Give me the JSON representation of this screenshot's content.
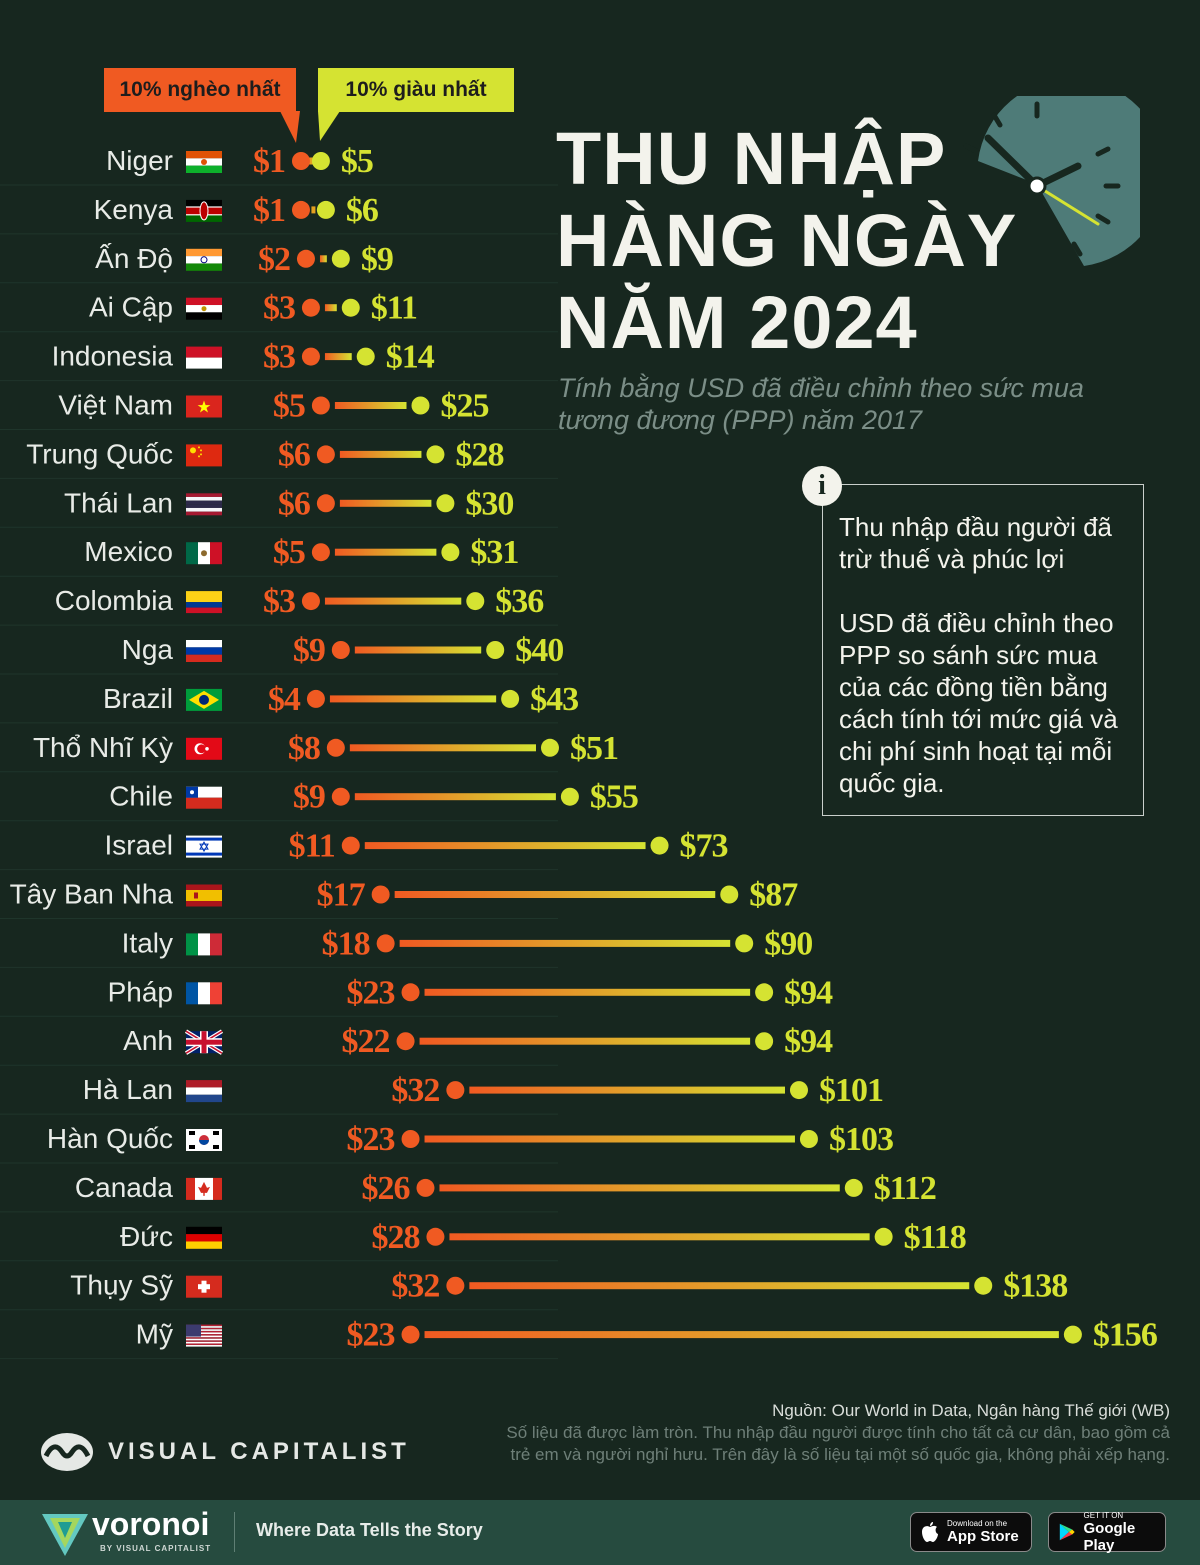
{
  "title_lines": [
    "THU NHẬP",
    "HÀNG NGÀY",
    "NĂM 2024"
  ],
  "subtitle": "Tính bằng USD đã điều chỉnh theo sức mua tương đương (PPP) năm 2017",
  "legend": {
    "poorest": "10% nghèo nhất",
    "richest": "10% giàu nhất"
  },
  "info": {
    "icon": "i",
    "paragraphs": [
      "Thu nhập đầu người đã trừ thuế và phúc lợi",
      "USD đã điều chỉnh theo PPP so sánh sức mua của các đồng tiền bằng cách tính tới mức giá và chi phí sinh hoạt tại mỗi quốc gia."
    ]
  },
  "source": "Nguồn: Our World in Data, Ngân hàng Thế giới (WB)",
  "note_lines": [
    "Số liệu đã được làm tròn. Thu nhập đầu người được tính cho tất cả cư dân, bao gồm cả",
    "trẻ em và người nghỉ hưu. Trên đây là số liệu tại một số quốc gia, không phải xếp hạng."
  ],
  "brand": "VISUAL CAPITALIST",
  "footer": {
    "name": "voronoi",
    "by": "BY VISUAL CAPITALIST",
    "tagline": "Where Data Tells the Story",
    "apple_small": "Download on the",
    "apple_big": "App Store",
    "google_small": "GET IT ON",
    "google_big": "Google Play"
  },
  "colors": {
    "background": "#17271f",
    "poorest": "#f05a22",
    "richest": "#d5e332",
    "title": "#f3f3ec",
    "subtitle": "#7b8e87",
    "clock": "#4e7b78",
    "footer": "#264b3f"
  },
  "chart_data": {
    "type": "dumbbell",
    "unit": "USD",
    "series": [
      {
        "name": "10% nghèo nhất",
        "key": "poorest"
      },
      {
        "name": "10% giàu nhất",
        "key": "richest"
      }
    ],
    "rows": [
      {
        "country": "Niger",
        "poorest": 1,
        "richest": 5,
        "poorest_label": "$1",
        "richest_label": "$5",
        "flag": "niger"
      },
      {
        "country": "Kenya",
        "poorest": 1,
        "richest": 6,
        "poorest_label": "$1",
        "richest_label": "$6",
        "flag": "kenya"
      },
      {
        "country": "Ấn Độ",
        "poorest": 2,
        "richest": 9,
        "poorest_label": "$2",
        "richest_label": "$9",
        "flag": "india"
      },
      {
        "country": "Ai Cập",
        "poorest": 3,
        "richest": 11,
        "poorest_label": "$3",
        "richest_label": "$11",
        "flag": "egypt"
      },
      {
        "country": "Indonesia",
        "poorest": 3,
        "richest": 14,
        "poorest_label": "$3",
        "richest_label": "$14",
        "flag": "indonesia"
      },
      {
        "country": "Việt Nam",
        "poorest": 5,
        "richest": 25,
        "poorest_label": "$5",
        "richest_label": "$25",
        "flag": "vietnam"
      },
      {
        "country": "Trung Quốc",
        "poorest": 6,
        "richest": 28,
        "poorest_label": "$6",
        "richest_label": "$28",
        "flag": "china"
      },
      {
        "country": "Thái Lan",
        "poorest": 6,
        "richest": 30,
        "poorest_label": "$6",
        "richest_label": "$30",
        "flag": "thailand"
      },
      {
        "country": "Mexico",
        "poorest": 5,
        "richest": 31,
        "poorest_label": "$5",
        "richest_label": "$31",
        "flag": "mexico"
      },
      {
        "country": "Colombia",
        "poorest": 3,
        "richest": 36,
        "poorest_label": "$3",
        "richest_label": "$36",
        "flag": "colombia"
      },
      {
        "country": "Nga",
        "poorest": 9,
        "richest": 40,
        "poorest_label": "$9",
        "richest_label": "$40",
        "flag": "russia"
      },
      {
        "country": "Brazil",
        "poorest": 4,
        "richest": 43,
        "poorest_label": "$4",
        "richest_label": "$43",
        "flag": "brazil"
      },
      {
        "country": "Thổ Nhĩ Kỳ",
        "poorest": 8,
        "richest": 51,
        "poorest_label": "$8",
        "richest_label": "$51",
        "flag": "turkey"
      },
      {
        "country": "Chile",
        "poorest": 9,
        "richest": 55,
        "poorest_label": "$9",
        "richest_label": "$55",
        "flag": "chile"
      },
      {
        "country": "Israel",
        "poorest": 11,
        "richest": 73,
        "poorest_label": "$11",
        "richest_label": "$73",
        "flag": "israel"
      },
      {
        "country": "Tây Ban Nha",
        "poorest": 17,
        "richest": 87,
        "poorest_label": "$17",
        "richest_label": "$87",
        "flag": "spain"
      },
      {
        "country": "Italy",
        "poorest": 18,
        "richest": 90,
        "poorest_label": "$18",
        "richest_label": "$90",
        "flag": "italy"
      },
      {
        "country": "Pháp",
        "poorest": 23,
        "richest": 94,
        "poorest_label": "$23",
        "richest_label": "$94",
        "flag": "france"
      },
      {
        "country": "Anh",
        "poorest": 22,
        "richest": 94,
        "poorest_label": "$22",
        "richest_label": "$94",
        "flag": "uk"
      },
      {
        "country": "Hà Lan",
        "poorest": 32,
        "richest": 101,
        "poorest_label": "$32",
        "richest_label": "$101",
        "flag": "netherlands"
      },
      {
        "country": "Hàn Quốc",
        "poorest": 23,
        "richest": 103,
        "poorest_label": "$23",
        "richest_label": "$103",
        "flag": "korea"
      },
      {
        "country": "Canada",
        "poorest": 26,
        "richest": 112,
        "poorest_label": "$26",
        "richest_label": "$112",
        "flag": "canada"
      },
      {
        "country": "Đức",
        "poorest": 28,
        "richest": 118,
        "poorest_label": "$28",
        "richest_label": "$118",
        "flag": "germany"
      },
      {
        "country": "Thụy Sỹ",
        "poorest": 32,
        "richest": 138,
        "poorest_label": "$32",
        "richest_label": "$138",
        "flag": "switzerland"
      },
      {
        "country": "Mỹ",
        "poorest": 23,
        "richest": 156,
        "poorest_label": "$23",
        "richest_label": "$156",
        "flag": "usa"
      }
    ]
  }
}
